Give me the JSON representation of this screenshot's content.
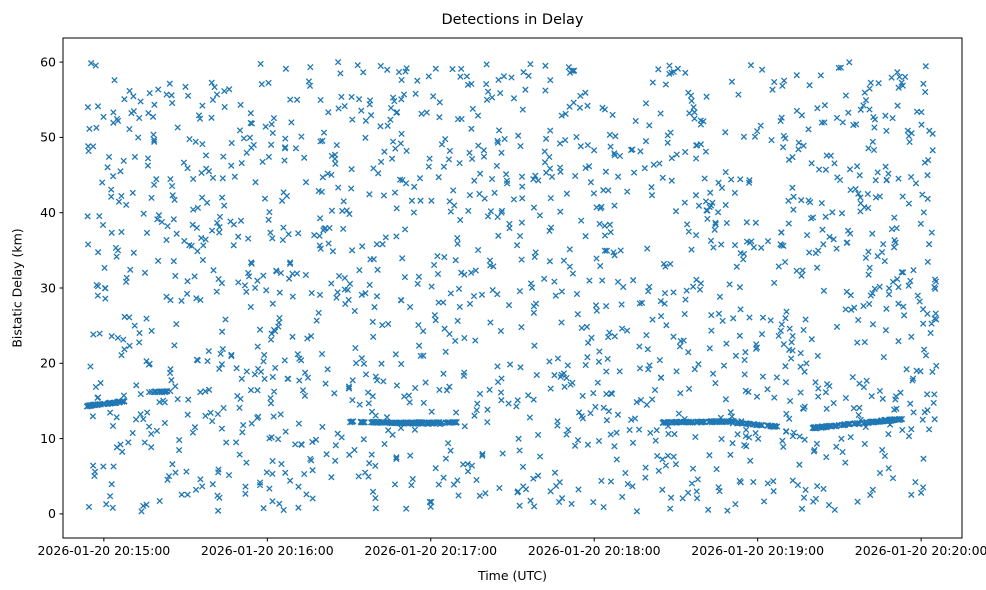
{
  "chart_data": {
    "type": "scatter",
    "title": "Detections in Delay",
    "xlabel": "Time (UTC)",
    "ylabel": "Bistatic Delay (km)",
    "marker": {
      "symbol": "x",
      "color": "#1f77b4",
      "size": 6
    },
    "x_axis": {
      "unit": "seconds after 2026-01-20 20:15:00",
      "domain": [
        -15,
        315
      ],
      "ticks": [
        {
          "t": 0,
          "label": "2026-01-20 20:15:00"
        },
        {
          "t": 60,
          "label": "2026-01-20 20:16:00"
        },
        {
          "t": 120,
          "label": "2026-01-20 20:17:00"
        },
        {
          "t": 180,
          "label": "2026-01-20 20:18:00"
        },
        {
          "t": 240,
          "label": "2026-01-20 20:19:00"
        },
        {
          "t": 300,
          "label": "2026-01-20 20:20:00"
        }
      ]
    },
    "y_axis": {
      "domain": [
        -3.2,
        63.2
      ],
      "ticks": [
        0,
        10,
        20,
        30,
        40,
        50,
        60
      ]
    },
    "noise": {
      "seed": 42,
      "count": 1600,
      "t_range": [
        -6,
        306
      ],
      "y_range": [
        0.3,
        60.0
      ]
    },
    "tracks": [
      {
        "t_start": -6,
        "t_end": 8,
        "y_start": 14.35,
        "y_end": 14.95,
        "count": 55,
        "jitter": 0.12
      },
      {
        "t_start": 16,
        "t_end": 25,
        "y_start": 16.15,
        "y_end": 16.3,
        "count": 22,
        "jitter": 0.1
      },
      {
        "t_start": 90,
        "t_end": 124,
        "y_start": 12.25,
        "y_end": 11.95,
        "count": 85,
        "jitter": 0.1
      },
      {
        "t_start": 106,
        "t_end": 130,
        "y_start": 12.1,
        "y_end": 12.15,
        "count": 60,
        "jitter": 0.08
      },
      {
        "t_start": 205,
        "t_end": 234,
        "y_start": 12.15,
        "y_end": 12.3,
        "count": 90,
        "jitter": 0.1
      },
      {
        "t_start": 232,
        "t_end": 247,
        "y_start": 12.1,
        "y_end": 11.6,
        "count": 40,
        "jitter": 0.1
      },
      {
        "t_start": 260,
        "t_end": 293,
        "y_start": 11.4,
        "y_end": 12.6,
        "count": 130,
        "jitter": 0.12
      }
    ]
  }
}
